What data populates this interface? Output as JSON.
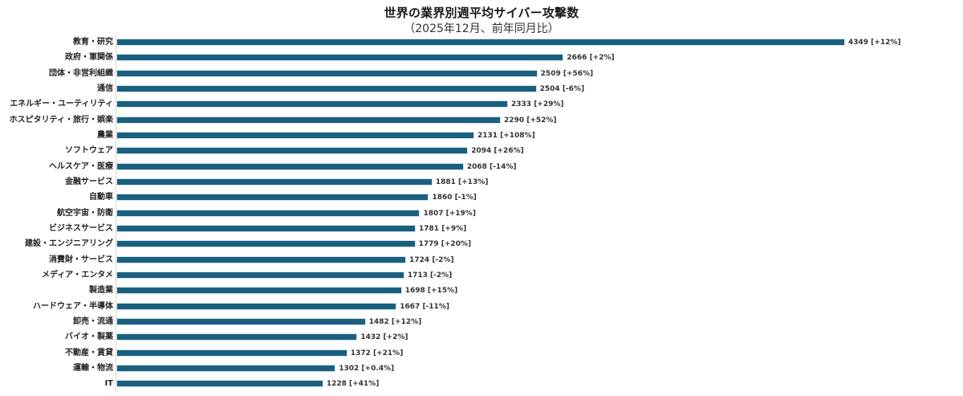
{
  "chart_data": {
    "type": "bar",
    "orientation": "horizontal",
    "title": "世界の業界別週平均サイバー攻撃数",
    "subtitle": "（2025年12月、前年同月比）",
    "xlabel": "",
    "ylabel": "",
    "grid": false,
    "legend": null,
    "bar_color": "#1b5f80",
    "categories": [
      "教育・研究",
      "政府・軍関係",
      "団体・非営利組織",
      "通信",
      "エネルギー・ユーティリティ",
      "ホスピタリティ・旅行・娯楽",
      "農業",
      "ソフトウェア",
      "ヘルスケア・医療",
      "金融サービス",
      "自動車",
      "航空宇宙・防衛",
      "ビジネスサービス",
      "建設・エンジニアリング",
      "消費財・サービス",
      "メディア・エンタメ",
      "製造業",
      "ハードウェア・半導体",
      "卸売・流通",
      "バイオ・製薬",
      "不動産・賃貸",
      "運輸・物流",
      "IT"
    ],
    "values": [
      4349,
      2666,
      2509,
      2504,
      2333,
      2290,
      2131,
      2094,
      2068,
      1881,
      1860,
      1807,
      1781,
      1779,
      1724,
      1713,
      1698,
      1667,
      1482,
      1432,
      1372,
      1302,
      1228
    ],
    "yoy_change": [
      "+12%",
      "+2%",
      "+56%",
      "-6%",
      "+29%",
      "+52%",
      "+108%",
      "+26%",
      "-14%",
      "+13%",
      "-1%",
      "+19%",
      "+9%",
      "+20%",
      "-2%",
      "-2%",
      "+15%",
      "-11%",
      "+12%",
      "+2%",
      "+21%",
      "+0.4%",
      "+41%"
    ],
    "data_labels": [
      "4349 [+12%]",
      "2666 [+2%]",
      "2509 [+56%]",
      "2504 [-6%]",
      "2333 [+29%]",
      "2290 [+52%]",
      "2131 [+108%]",
      "2094 [+26%]",
      "2068 [-14%]",
      "1881 [+13%]",
      "1860 [-1%]",
      "1807 [+19%]",
      "1781 [+9%]",
      "1779 [+20%]",
      "1724 [-2%]",
      "1713 [-2%]",
      "1698 [+15%]",
      "1667 [-11%]",
      "1482 [+12%]",
      "1432 [+2%]",
      "1372 [+21%]",
      "1302 [+0.4%]",
      "1228 [+41%]"
    ],
    "xlim": [
      0,
      4349
    ]
  }
}
